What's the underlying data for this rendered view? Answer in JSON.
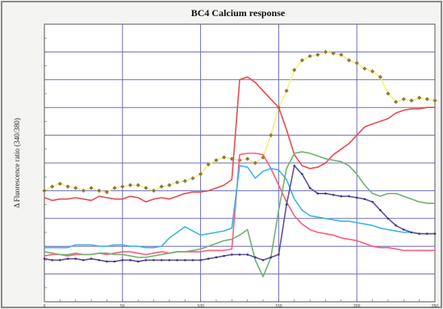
{
  "chart_data": {
    "type": "line",
    "title": "BC4 Calcium response",
    "xlabel": "",
    "ylabel": "Δ Fluorescence ratio (340/380)",
    "xlim": [
      0,
      250
    ],
    "ylim": [
      0,
      10
    ],
    "x_ticks": [
      0,
      50,
      100,
      150,
      200,
      250
    ],
    "grid": true,
    "background_color": "#f4f4f2",
    "grid_color": "#6b6bb8",
    "series": [
      {
        "color": "#f4f07a",
        "marker": "diamond",
        "marker_color": "#8a7a3a",
        "x": [
          0,
          5,
          10,
          15,
          20,
          25,
          30,
          35,
          40,
          45,
          50,
          55,
          60,
          65,
          70,
          75,
          80,
          85,
          90,
          95,
          100,
          105,
          110,
          115,
          120,
          125,
          130,
          135,
          140,
          145,
          150,
          155,
          160,
          165,
          170,
          175,
          180,
          185,
          190,
          195,
          200,
          205,
          210,
          215,
          220,
          225,
          230,
          235,
          240,
          245,
          250
        ],
        "y": [
          4.0,
          4.15,
          4.25,
          4.15,
          4.1,
          4.0,
          4.1,
          4.0,
          3.95,
          4.1,
          4.15,
          4.2,
          4.2,
          4.1,
          4.0,
          4.15,
          4.2,
          4.3,
          4.35,
          4.45,
          4.6,
          4.95,
          5.1,
          5.2,
          5.15,
          5.1,
          5.15,
          5.0,
          5.2,
          6.0,
          7.0,
          7.6,
          8.35,
          8.7,
          8.85,
          8.9,
          9.0,
          8.95,
          8.9,
          8.7,
          8.6,
          8.4,
          8.3,
          8.1,
          7.5,
          7.2,
          7.3,
          7.25,
          7.35,
          7.3,
          7.25
        ]
      },
      {
        "color": "#e84a4a",
        "x": [
          0,
          5,
          10,
          15,
          20,
          25,
          30,
          35,
          40,
          45,
          50,
          55,
          60,
          65,
          70,
          75,
          80,
          85,
          90,
          95,
          100,
          105,
          110,
          115,
          120,
          125,
          130,
          135,
          140,
          145,
          150,
          155,
          160,
          165,
          170,
          175,
          180,
          185,
          190,
          195,
          200,
          205,
          210,
          215,
          220,
          225,
          230,
          235,
          240,
          245,
          250
        ],
        "y": [
          3.75,
          3.65,
          3.7,
          3.7,
          3.75,
          3.7,
          3.65,
          3.8,
          3.75,
          3.7,
          3.7,
          3.8,
          3.75,
          3.6,
          3.7,
          3.75,
          3.7,
          3.8,
          3.9,
          3.95,
          3.95,
          4.0,
          4.1,
          4.2,
          4.4,
          8.0,
          8.1,
          7.9,
          7.6,
          7.3,
          7.0,
          6.2,
          5.3,
          4.9,
          4.8,
          4.85,
          5.0,
          5.3,
          5.5,
          5.7,
          6.0,
          6.3,
          6.4,
          6.5,
          6.6,
          6.8,
          6.9,
          6.95,
          6.95,
          7.0,
          7.0
        ]
      },
      {
        "color": "#ff5a7a",
        "x": [
          0,
          5,
          10,
          15,
          20,
          25,
          30,
          35,
          40,
          45,
          50,
          55,
          60,
          65,
          70,
          75,
          80,
          85,
          90,
          95,
          100,
          105,
          110,
          115,
          120,
          125,
          130,
          135,
          140,
          145,
          150,
          155,
          160,
          165,
          170,
          175,
          180,
          185,
          190,
          195,
          200,
          205,
          210,
          215,
          220,
          225,
          230,
          235,
          240,
          245,
          250
        ],
        "y": [
          1.65,
          1.7,
          1.7,
          1.65,
          1.7,
          1.7,
          1.7,
          1.75,
          1.7,
          1.75,
          1.8,
          1.8,
          1.75,
          1.7,
          1.75,
          1.8,
          1.75,
          1.8,
          1.8,
          1.8,
          1.8,
          1.85,
          1.85,
          1.85,
          1.9,
          5.3,
          5.35,
          5.35,
          5.3,
          4.8,
          4.2,
          3.6,
          3.1,
          2.8,
          2.6,
          2.5,
          2.45,
          2.4,
          2.3,
          2.25,
          2.2,
          2.1,
          2.0,
          1.95,
          1.95,
          1.9,
          1.85,
          1.85,
          1.85,
          1.85,
          1.85
        ]
      },
      {
        "color": "#3ab4e6",
        "x": [
          0,
          5,
          10,
          15,
          20,
          25,
          30,
          35,
          40,
          45,
          50,
          55,
          60,
          65,
          70,
          75,
          80,
          85,
          90,
          95,
          100,
          105,
          110,
          115,
          120,
          125,
          130,
          135,
          140,
          145,
          150,
          155,
          160,
          165,
          170,
          175,
          180,
          185,
          190,
          195,
          200,
          205,
          210,
          215,
          220,
          225,
          230,
          235,
          240,
          245,
          250
        ],
        "y": [
          1.95,
          1.95,
          1.95,
          1.95,
          2.05,
          2.05,
          2.05,
          2.0,
          2.0,
          2.05,
          2.05,
          2.0,
          2.0,
          1.95,
          1.95,
          2.0,
          2.3,
          2.5,
          2.7,
          2.55,
          2.4,
          2.45,
          2.5,
          2.55,
          2.65,
          4.9,
          4.85,
          4.45,
          4.7,
          4.8,
          4.75,
          4.4,
          3.7,
          3.3,
          3.1,
          3.05,
          3.0,
          2.95,
          2.9,
          2.9,
          2.85,
          2.8,
          2.75,
          2.65,
          2.6,
          2.55,
          2.5,
          2.5,
          2.45,
          2.45,
          2.45
        ]
      },
      {
        "color": "#6fb06f",
        "x": [
          0,
          5,
          10,
          15,
          20,
          25,
          30,
          35,
          40,
          45,
          50,
          55,
          60,
          65,
          70,
          75,
          80,
          85,
          90,
          95,
          100,
          105,
          110,
          115,
          120,
          125,
          130,
          135,
          140,
          145,
          150,
          155,
          160,
          165,
          170,
          175,
          180,
          185,
          190,
          195,
          200,
          205,
          210,
          215,
          220,
          225,
          230,
          235,
          240,
          245,
          250
        ],
        "y": [
          1.8,
          1.75,
          1.7,
          1.7,
          1.75,
          1.7,
          1.7,
          1.75,
          1.75,
          1.7,
          1.7,
          1.65,
          1.6,
          1.6,
          1.65,
          1.7,
          1.75,
          1.8,
          1.8,
          1.85,
          1.9,
          2.0,
          2.1,
          2.2,
          2.25,
          2.4,
          2.6,
          1.5,
          0.9,
          1.6,
          3.3,
          4.8,
          5.35,
          5.4,
          5.35,
          5.25,
          5.15,
          5.1,
          5.05,
          4.9,
          4.6,
          4.2,
          3.9,
          3.8,
          3.9,
          3.9,
          3.8,
          3.7,
          3.6,
          3.55,
          3.55
        ]
      },
      {
        "color": "#5a4f9e",
        "marker": "dot",
        "marker_color": "#3a346e",
        "x": [
          0,
          5,
          10,
          15,
          20,
          25,
          30,
          35,
          40,
          45,
          50,
          55,
          60,
          65,
          70,
          75,
          80,
          85,
          90,
          95,
          100,
          105,
          110,
          115,
          120,
          125,
          130,
          135,
          140,
          145,
          150,
          155,
          160,
          165,
          170,
          175,
          180,
          185,
          190,
          195,
          200,
          205,
          210,
          215,
          220,
          225,
          230,
          235,
          240,
          245,
          250
        ],
        "y": [
          1.55,
          1.5,
          1.5,
          1.55,
          1.55,
          1.5,
          1.55,
          1.5,
          1.45,
          1.45,
          1.5,
          1.5,
          1.45,
          1.5,
          1.5,
          1.5,
          1.5,
          1.5,
          1.5,
          1.5,
          1.5,
          1.55,
          1.6,
          1.65,
          1.7,
          1.7,
          1.7,
          1.6,
          1.5,
          1.6,
          1.7,
          3.5,
          4.9,
          4.6,
          4.1,
          3.9,
          3.9,
          3.85,
          3.8,
          3.8,
          3.75,
          3.7,
          3.6,
          3.3,
          3.0,
          2.75,
          2.6,
          2.5,
          2.45,
          2.45,
          2.45
        ]
      }
    ]
  }
}
